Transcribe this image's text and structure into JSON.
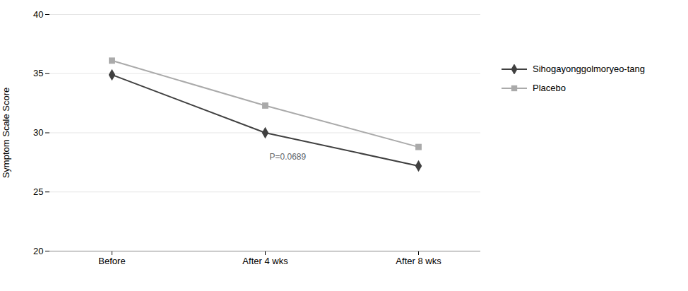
{
  "chart_data": {
    "type": "line",
    "categories": [
      "Before",
      "After 4 wks",
      "After 8 wks"
    ],
    "series": [
      {
        "name": "Sihogayonggolmoryeo-tang",
        "color": "#404040",
        "marker": "diamond",
        "values": [
          34.9,
          30.0,
          27.2
        ]
      },
      {
        "name": "Placebo",
        "color": "#aaaaaa",
        "marker": "square",
        "values": [
          36.1,
          32.3,
          28.8
        ]
      }
    ],
    "ylabel": "Symptom Scale Score",
    "ylim": [
      20,
      40
    ],
    "yticks": [
      20,
      25,
      30,
      35,
      40
    ],
    "grid": true,
    "legend": "right",
    "annotations": [
      {
        "text": "P=0.0689",
        "x": "After 4 wks",
        "y": 28.3
      }
    ]
  }
}
